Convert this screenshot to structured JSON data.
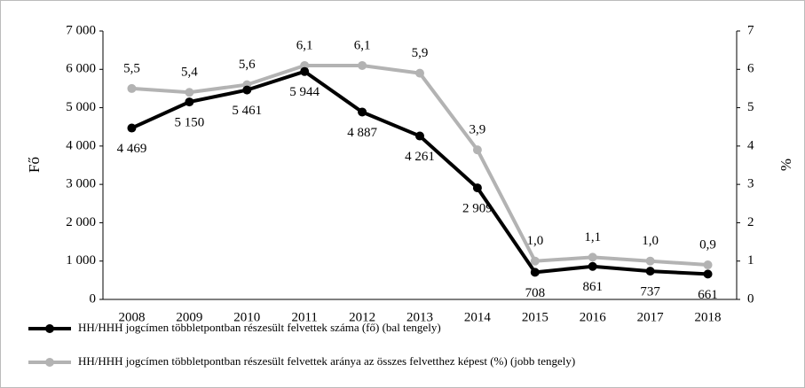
{
  "chart_data": {
    "type": "line",
    "categories": [
      "2008",
      "2009",
      "2010",
      "2011",
      "2012",
      "2013",
      "2014",
      "2015",
      "2016",
      "2017",
      "2018"
    ],
    "ylabel": "Fő",
    "y2label": "%",
    "ylim": [
      0,
      7000
    ],
    "yticks": [
      0,
      {
        "value": 1000,
        "label": "1 000"
      },
      {
        "value": 2000,
        "label": "2 000"
      },
      {
        "value": 3000,
        "label": "3 000"
      },
      {
        "value": 4000,
        "label": "4 000"
      },
      {
        "value": 5000,
        "label": "5 000"
      },
      {
        "value": 6000,
        "label": "6 000"
      },
      {
        "value": 7000,
        "label": "7 000"
      }
    ],
    "y2lim": [
      0,
      7
    ],
    "y2ticks": [
      0,
      1,
      2,
      3,
      4,
      5,
      6,
      7
    ],
    "legend": "bottom",
    "series": [
      {
        "name": "HH/HHH jogcímen többletpontban részesült felvettek száma (fő) (bal tengely)",
        "color": "#000000",
        "values": [
          4469,
          5150,
          5461,
          5944,
          4887,
          4261,
          2909,
          708,
          861,
          737,
          661
        ],
        "value_labels": [
          "4 469",
          "5 150",
          "5 461",
          "5 944",
          "4 887",
          "4 261",
          "2 909",
          "708",
          "861",
          "737",
          "661"
        ]
      },
      {
        "name": "HH/HHH jogcímen többletpontban részesült felvettek aránya az összes felvetthez képest (%) (jobb tengely)",
        "color": "#b3b3b3",
        "axis": "y2",
        "values": [
          5.5,
          5.4,
          5.6,
          6.1,
          6.1,
          5.9,
          3.9,
          1.0,
          1.1,
          1.0,
          0.9
        ],
        "value_labels": [
          "5,5",
          "5,4",
          "5,6",
          "6,1",
          "6,1",
          "5,9",
          "3,9",
          "1,0",
          "1,1",
          "1,0",
          "0,9"
        ]
      }
    ]
  }
}
